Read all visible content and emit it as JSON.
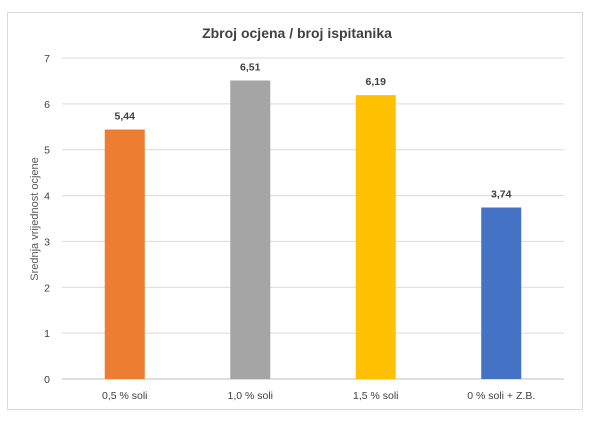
{
  "chart_data": {
    "type": "bar",
    "title": "Zbroj ocjena / broj ispitanika",
    "xlabel": "",
    "ylabel": "Srednja vrijednost ocjene",
    "categories": [
      "0,5 % soli",
      "1,0 % soli",
      "1,5 % soli",
      "0 % soli + Z.B."
    ],
    "values": [
      5.44,
      6.51,
      6.19,
      3.74
    ],
    "value_labels": [
      "5,44",
      "6,51",
      "6,19",
      "3,74"
    ],
    "colors": [
      "#ED7D31",
      "#A5A5A5",
      "#FFC000",
      "#4472C4"
    ],
    "ylim": [
      0,
      7
    ],
    "yticks": [
      0,
      1,
      2,
      3,
      4,
      5,
      6,
      7
    ],
    "grid": true,
    "legend": "none"
  }
}
